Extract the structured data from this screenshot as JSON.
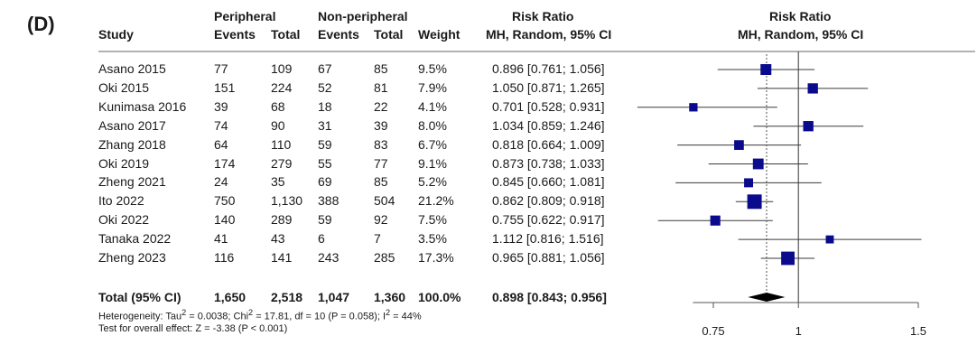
{
  "panel_label": "(D)",
  "headers": {
    "study": "Study",
    "peripheral": "Peripheral",
    "non_peripheral": "Non-peripheral",
    "events1": "Events",
    "total1": "Total",
    "events2": "Events",
    "total2": "Total",
    "weight": "Weight",
    "rr": "Risk Ratio",
    "rr_method": "MH, Random, 95% CI",
    "plot_rr": "Risk Ratio",
    "plot_method": "MH, Random, 95% CI"
  },
  "studies": [
    {
      "name": "Asano 2015",
      "e1": "77",
      "n1": "109",
      "e2": "67",
      "n2": "85",
      "weight": "9.5%",
      "ci_text": "0.896 [0.761; 1.056]"
    },
    {
      "name": "Oki 2015",
      "e1": "151",
      "n1": "224",
      "e2": "52",
      "n2": "81",
      "weight": "7.9%",
      "ci_text": "1.050 [0.871; 1.265]"
    },
    {
      "name": "Kunimasa 2016",
      "e1": "39",
      "n1": "68",
      "e2": "18",
      "n2": "22",
      "weight": "4.1%",
      "ci_text": "0.701 [0.528; 0.931]"
    },
    {
      "name": "Asano 2017",
      "e1": "74",
      "n1": "90",
      "e2": "31",
      "n2": "39",
      "weight": "8.0%",
      "ci_text": "1.034 [0.859; 1.246]"
    },
    {
      "name": "Zhang 2018",
      "e1": "64",
      "n1": "110",
      "e2": "59",
      "n2": "83",
      "weight": "6.7%",
      "ci_text": "0.818 [0.664; 1.009]"
    },
    {
      "name": "Oki 2019",
      "e1": "174",
      "n1": "279",
      "e2": "55",
      "n2": "77",
      "weight": "9.1%",
      "ci_text": "0.873 [0.738; 1.033]"
    },
    {
      "name": "Zheng 2021",
      "e1": "24",
      "n1": "35",
      "e2": "69",
      "n2": "85",
      "weight": "5.2%",
      "ci_text": "0.845 [0.660; 1.081]"
    },
    {
      "name": "Ito 2022",
      "e1": "750",
      "n1": "1,130",
      "e2": "388",
      "n2": "504",
      "weight": "21.2%",
      "ci_text": "0.862 [0.809; 0.918]"
    },
    {
      "name": "Oki 2022",
      "e1": "140",
      "n1": "289",
      "e2": "59",
      "n2": "92",
      "weight": "7.5%",
      "ci_text": "0.755 [0.622; 0.917]"
    },
    {
      "name": "Tanaka 2022",
      "e1": "41",
      "n1": "43",
      "e2": "6",
      "n2": "7",
      "weight": "3.5%",
      "ci_text": "1.112 [0.816; 1.516]"
    },
    {
      "name": "Zheng 2023",
      "e1": "116",
      "n1": "141",
      "e2": "243",
      "n2": "285",
      "weight": "17.3%",
      "ci_text": "0.965 [0.881; 1.056]"
    }
  ],
  "total": {
    "name": "Total (95% CI)",
    "e1": "1,650",
    "n1": "2,518",
    "e2": "1,047",
    "n2": "1,360",
    "weight": "100.0%",
    "ci_text": "0.898 [0.843; 0.956]"
  },
  "heterogeneity": {
    "prefix": "Heterogeneity: Tau",
    "sup1": "2",
    "mid1": " = 0.0038; Chi",
    "sup2": "2",
    "mid2": " = 17.81, df = 10 (P = 0.058); I",
    "sup3": "2",
    "end": " = 44%"
  },
  "overall_effect": "Test for overall effect: Z = -3.38 (P < 0.001)",
  "chart_data": {
    "type": "forest",
    "scale": "log",
    "x_ticks": [
      0.75,
      1,
      1.5
    ],
    "x_tick_labels": [
      "0.75",
      "1",
      "1.5"
    ],
    "null_line": 1,
    "summary_line": 0.898,
    "rows": [
      {
        "study": "Asano 2015",
        "rr": 0.896,
        "lo": 0.761,
        "hi": 1.056,
        "weight": 9.5
      },
      {
        "study": "Oki 2015",
        "rr": 1.05,
        "lo": 0.871,
        "hi": 1.265,
        "weight": 7.9
      },
      {
        "study": "Kunimasa 2016",
        "rr": 0.701,
        "lo": 0.528,
        "hi": 0.931,
        "weight": 4.1
      },
      {
        "study": "Asano 2017",
        "rr": 1.034,
        "lo": 0.859,
        "hi": 1.246,
        "weight": 8.0
      },
      {
        "study": "Zhang 2018",
        "rr": 0.818,
        "lo": 0.664,
        "hi": 1.009,
        "weight": 6.7
      },
      {
        "study": "Oki 2019",
        "rr": 0.873,
        "lo": 0.738,
        "hi": 1.033,
        "weight": 9.1
      },
      {
        "study": "Zheng 2021",
        "rr": 0.845,
        "lo": 0.66,
        "hi": 1.081,
        "weight": 5.2
      },
      {
        "study": "Ito 2022",
        "rr": 0.862,
        "lo": 0.809,
        "hi": 0.918,
        "weight": 21.2
      },
      {
        "study": "Oki 2022",
        "rr": 0.755,
        "lo": 0.622,
        "hi": 0.917,
        "weight": 7.5
      },
      {
        "study": "Tanaka 2022",
        "rr": 1.112,
        "lo": 0.816,
        "hi": 1.516,
        "weight": 3.5
      },
      {
        "study": "Zheng 2023",
        "rr": 0.965,
        "lo": 0.881,
        "hi": 1.056,
        "weight": 17.3
      }
    ],
    "pooled": {
      "rr": 0.898,
      "lo": 0.843,
      "hi": 0.956
    },
    "colors": {
      "box": "#0a0a8c",
      "line": "#3a3a3a",
      "diamond": "#000000",
      "axis": "#555555"
    }
  }
}
